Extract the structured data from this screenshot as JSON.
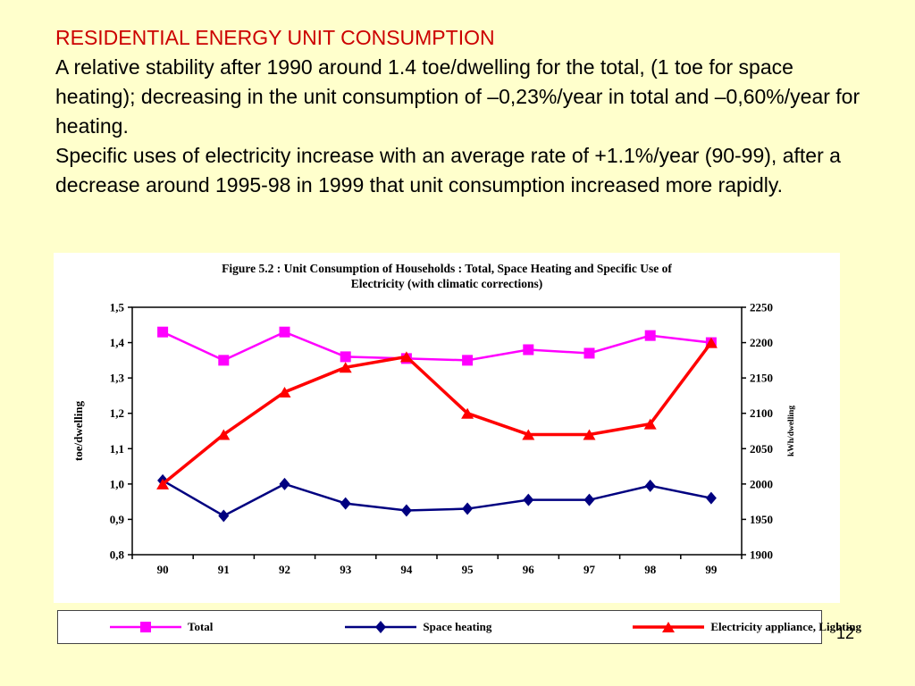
{
  "slide": {
    "background": "#FFFFCC",
    "page_number": "12",
    "heading": "RESIDENTIAL ENERGY UNIT CONSUMPTION",
    "paragraph1": "A relative stability after 1990 around 1.4 toe/dwelling for the total, (1 toe for space heating); decreasing in the unit consumption of –0,23%/year in total and –0,60%/year for heating.",
    "paragraph2": "Specific uses of electricity increase with an average rate of +1.1%/year (90-99), after a decrease around 1995-98 in 1999 that unit consumption increased more rapidly."
  },
  "chart_data": {
    "type": "line",
    "title_line1": "Figure 5.2 : Unit Consumption of Households : Total, Space Heating and Specific Use of",
    "title_line2": "Electricity (with climatic corrections)",
    "categories": [
      "90",
      "91",
      "92",
      "93",
      "94",
      "95",
      "96",
      "97",
      "98",
      "99"
    ],
    "left_axis": {
      "label": "toe/dwelling",
      "min": 0.8,
      "max": 1.5,
      "step": 0.1,
      "tick_labels": [
        "1,5",
        "1,4",
        "1,3",
        "1,2",
        "1,1",
        "1,0",
        "0,9",
        "0,8"
      ]
    },
    "right_axis": {
      "label": "kWh/dwelling",
      "min": 1900,
      "max": 2250,
      "step": 50,
      "tick_labels": [
        "2250",
        "2200",
        "2150",
        "2100",
        "2050",
        "2000",
        "1950",
        "1900"
      ]
    },
    "grid": "off",
    "legend_position": "bottom",
    "series": [
      {
        "name": "Total",
        "axis": "left",
        "color": "#FF00FF",
        "marker": "square",
        "values": [
          1.43,
          1.35,
          1.43,
          1.36,
          1.355,
          1.35,
          1.38,
          1.37,
          1.42,
          1.4
        ]
      },
      {
        "name": "Space heating",
        "axis": "left",
        "color": "#000080",
        "marker": "diamond",
        "values": [
          1.01,
          0.91,
          1.0,
          0.945,
          0.925,
          0.93,
          0.955,
          0.955,
          0.995,
          0.96
        ]
      },
      {
        "name": "Electricity appliance, Lighting",
        "axis": "right",
        "color": "#FF0000",
        "marker": "triangle",
        "values": [
          2000,
          2070,
          2130,
          2165,
          2180,
          2100,
          2070,
          2070,
          2085,
          2200
        ]
      }
    ]
  }
}
